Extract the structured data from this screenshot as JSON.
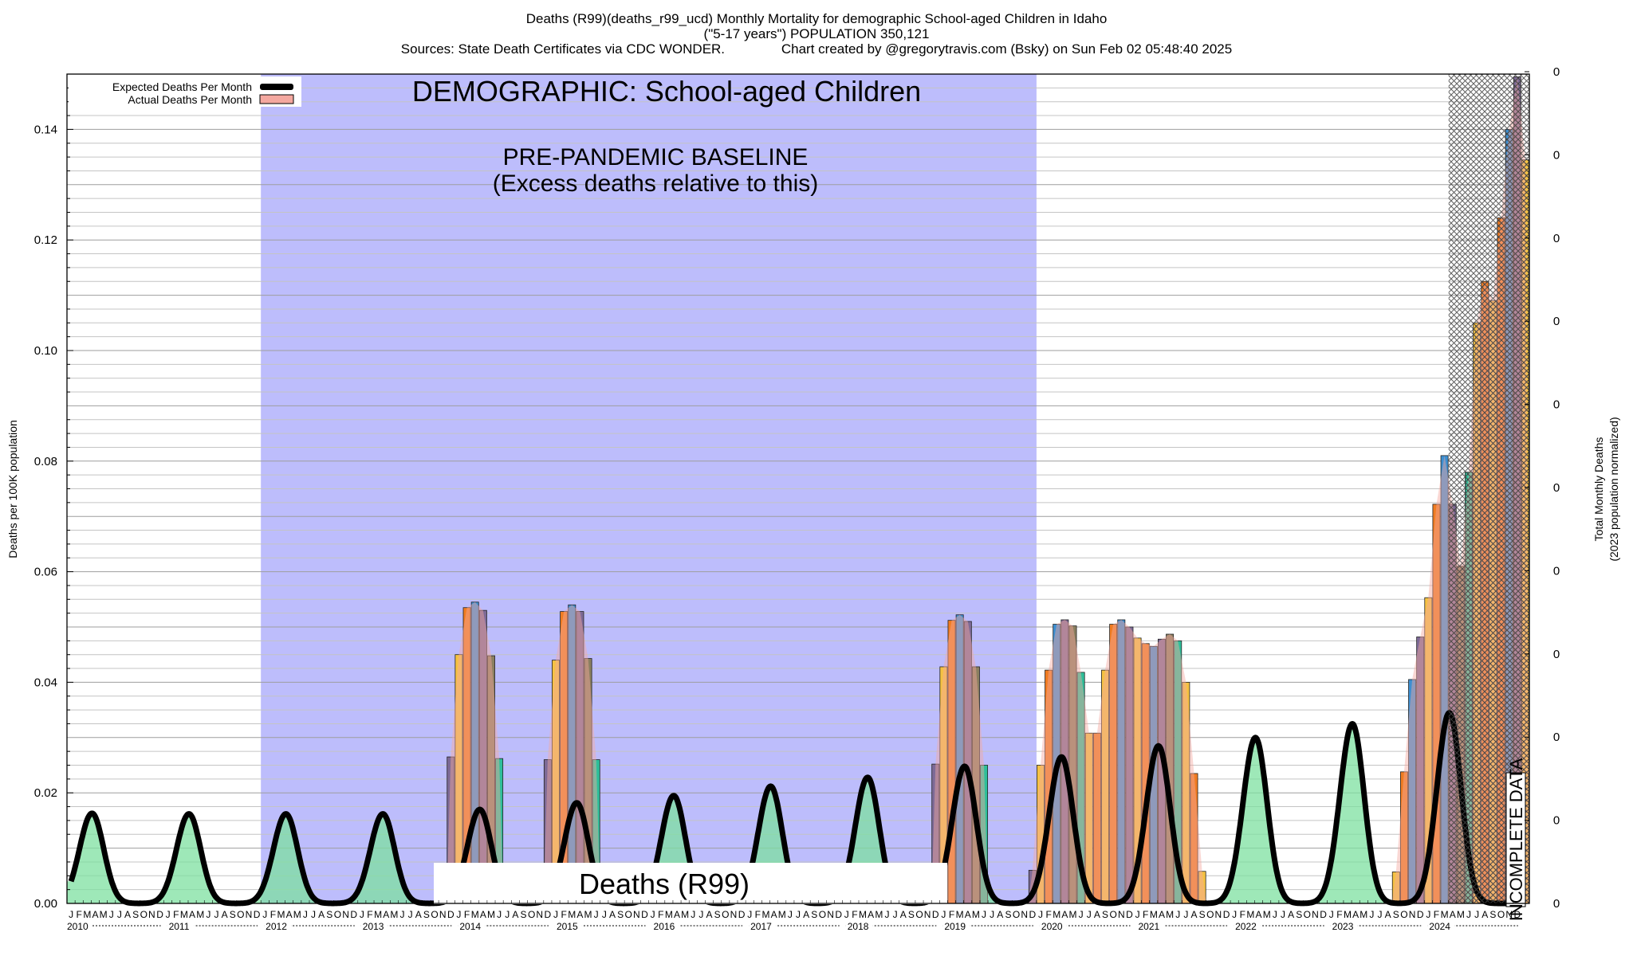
{
  "header": {
    "line1": "Deaths (R99)(deaths_r99_ucd) Monthly Mortality for demographic School-aged Children in Idaho",
    "line2": "(\"5-17 years\") POPULATION 350,121",
    "line3": "Sources: State Death Certificates via CDC WONDER.               Chart created by @gregorytravis.com (Bsky) on Sun Feb 02 05:48:40 2025"
  },
  "chart_data": {
    "type": "bar",
    "title": "Deaths (R99)(deaths_r99_ucd) Monthly Mortality for demographic School-aged Children in Idaho",
    "ylabel": "Deaths per 100K population",
    "y2label_line1": "Total Monthly Deaths",
    "y2label_line2": "(2023 population normalized)",
    "ylim": [
      0,
      0.15
    ],
    "yticks": [
      "0.00",
      "0.02",
      "0.04",
      "0.06",
      "0.08",
      "0.10",
      "0.12",
      "0.14"
    ],
    "y2ticks": [
      "0",
      "0",
      "0",
      "0",
      "0",
      "0",
      "0",
      "0",
      "0",
      "0",
      "0"
    ],
    "x_start": "2010-01",
    "month_letters": [
      "J",
      "F",
      "M",
      "A",
      "M",
      "J",
      "J",
      "A",
      "S",
      "O",
      "N",
      "D"
    ],
    "years": [
      "2010",
      "2011",
      "2012",
      "2013",
      "2014",
      "2015",
      "2016",
      "2017",
      "2018",
      "2019",
      "2020",
      "2021",
      "2022",
      "2023",
      "2024"
    ],
    "legend": [
      {
        "label": "Expected Deaths Per Month",
        "color": "#000000"
      },
      {
        "label": "Actual Deaths Per Month",
        "color": "#f4a8a0"
      }
    ],
    "legend_position": "top-left",
    "baseline_region": {
      "start": "2012-01",
      "end": "2019-12",
      "color": "#bdbdfc"
    },
    "annotations": {
      "demographic": "DEMOGRAPHIC: School-aged Children",
      "baseline_line1": "PRE-PANDEMIC BASELINE",
      "baseline_line2": "(Excess deaths relative to this)",
      "cause_label": "Deaths (R99)",
      "incomplete": "INCOMPLETE DATA"
    },
    "incomplete_start": "2024-04",
    "expected_peaks": [
      {
        "month": "2010-03",
        "value": 0.0163
      },
      {
        "month": "2011-03",
        "value": 0.0162
      },
      {
        "month": "2012-03",
        "value": 0.0162
      },
      {
        "month": "2013-03",
        "value": 0.0162
      },
      {
        "month": "2014-03",
        "value": 0.017
      },
      {
        "month": "2015-03",
        "value": 0.0182
      },
      {
        "month": "2016-03",
        "value": 0.0195
      },
      {
        "month": "2017-03",
        "value": 0.0212
      },
      {
        "month": "2018-03",
        "value": 0.0228
      },
      {
        "month": "2019-03",
        "value": 0.0248
      },
      {
        "month": "2020-03",
        "value": 0.0265
      },
      {
        "month": "2021-03",
        "value": 0.0285
      },
      {
        "month": "2022-03",
        "value": 0.03
      },
      {
        "month": "2023-03",
        "value": 0.0325
      },
      {
        "month": "2024-03",
        "value": 0.0345
      }
    ],
    "actual_bars": [
      {
        "month": "2013-12",
        "value": 0.0265
      },
      {
        "month": "2014-01",
        "value": 0.045
      },
      {
        "month": "2014-02",
        "value": 0.0535
      },
      {
        "month": "2014-03",
        "value": 0.0545
      },
      {
        "month": "2014-04",
        "value": 0.053
      },
      {
        "month": "2014-05",
        "value": 0.0448
      },
      {
        "month": "2014-06",
        "value": 0.0262
      },
      {
        "month": "2014-12",
        "value": 0.026
      },
      {
        "month": "2015-01",
        "value": 0.044
      },
      {
        "month": "2015-02",
        "value": 0.0528
      },
      {
        "month": "2015-03",
        "value": 0.054
      },
      {
        "month": "2015-04",
        "value": 0.0528
      },
      {
        "month": "2015-05",
        "value": 0.0443
      },
      {
        "month": "2015-06",
        "value": 0.026
      },
      {
        "month": "2018-12",
        "value": 0.0252
      },
      {
        "month": "2019-01",
        "value": 0.0428
      },
      {
        "month": "2019-02",
        "value": 0.0512
      },
      {
        "month": "2019-03",
        "value": 0.0522
      },
      {
        "month": "2019-04",
        "value": 0.051
      },
      {
        "month": "2019-05",
        "value": 0.0428
      },
      {
        "month": "2019-06",
        "value": 0.025
      },
      {
        "month": "2019-12",
        "value": 0.006
      },
      {
        "month": "2020-01",
        "value": 0.025
      },
      {
        "month": "2020-02",
        "value": 0.0422
      },
      {
        "month": "2020-03",
        "value": 0.0505
      },
      {
        "month": "2020-04",
        "value": 0.0513
      },
      {
        "month": "2020-05",
        "value": 0.0502
      },
      {
        "month": "2020-06",
        "value": 0.0418
      },
      {
        "month": "2020-07",
        "value": 0.0308
      },
      {
        "month": "2020-08",
        "value": 0.0308
      },
      {
        "month": "2020-09",
        "value": 0.0422
      },
      {
        "month": "2020-10",
        "value": 0.0505
      },
      {
        "month": "2020-11",
        "value": 0.0513
      },
      {
        "month": "2020-12",
        "value": 0.05
      },
      {
        "month": "2021-01",
        "value": 0.048
      },
      {
        "month": "2021-02",
        "value": 0.047
      },
      {
        "month": "2021-03",
        "value": 0.0465
      },
      {
        "month": "2021-04",
        "value": 0.0478
      },
      {
        "month": "2021-05",
        "value": 0.0487
      },
      {
        "month": "2021-06",
        "value": 0.0475
      },
      {
        "month": "2021-07",
        "value": 0.04
      },
      {
        "month": "2021-08",
        "value": 0.0235
      },
      {
        "month": "2021-09",
        "value": 0.0058
      },
      {
        "month": "2023-09",
        "value": 0.0057
      },
      {
        "month": "2023-10",
        "value": 0.0238
      },
      {
        "month": "2023-11",
        "value": 0.0405
      },
      {
        "month": "2023-12",
        "value": 0.0482
      },
      {
        "month": "2024-01",
        "value": 0.0553
      },
      {
        "month": "2024-02",
        "value": 0.0722
      },
      {
        "month": "2024-03",
        "value": 0.081
      },
      {
        "month": "2024-04",
        "value": 0.0722
      },
      {
        "month": "2024-05",
        "value": 0.061
      },
      {
        "month": "2024-06",
        "value": 0.078
      },
      {
        "month": "2024-07",
        "value": 0.105
      },
      {
        "month": "2024-08",
        "value": 0.1125
      },
      {
        "month": "2024-09",
        "value": 0.109
      },
      {
        "month": "2024-10",
        "value": 0.124
      },
      {
        "month": "2024-11",
        "value": 0.14
      },
      {
        "month": "2024-12",
        "value": 0.1495
      },
      {
        "month": "2025-01",
        "value": 0.1345
      }
    ],
    "bar_palette": [
      "#f5c242",
      "#f07c22",
      "#3d8fd1",
      "#7d6a96",
      "#8a7f60",
      "#2ebf9a",
      "#f5c242",
      "#f07c22"
    ],
    "expected_fill_color": "#7de0a0",
    "expected_line_color": "#000000",
    "grid": true
  }
}
